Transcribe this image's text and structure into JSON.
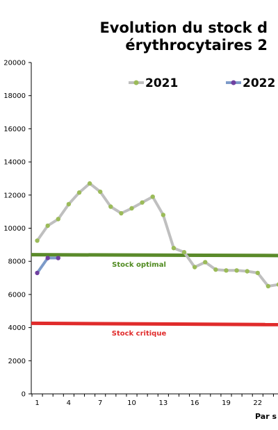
{
  "chart_data": {
    "type": "line",
    "title_lines": [
      "Evolution du stock d",
      "érythrocytaires 2"
    ],
    "xlabel": "Par s",
    "ylim": [
      0,
      20000
    ],
    "yticks": [
      0,
      2000,
      4000,
      6000,
      8000,
      10000,
      12000,
      14000,
      16000,
      18000,
      20000
    ],
    "xlim": [
      0.5,
      24
    ],
    "xticks": [
      1,
      4,
      7,
      10,
      13,
      16,
      19,
      22
    ],
    "legend_position": "top",
    "series": [
      {
        "name": "2021",
        "color": "#bfbfbf",
        "marker_color": "#9bbb59",
        "x": [
          1,
          2,
          3,
          4,
          5,
          6,
          7,
          8,
          9,
          10,
          11,
          12,
          13,
          14,
          15,
          16,
          17,
          18,
          19,
          20,
          21,
          22,
          23,
          24
        ],
        "values": [
          9250,
          10150,
          10550,
          11450,
          12150,
          12700,
          12200,
          11300,
          10900,
          11200,
          11550,
          11900,
          10800,
          8800,
          8550,
          7650,
          7950,
          7500,
          7450,
          7450,
          7400,
          7300,
          6500,
          6600
        ]
      },
      {
        "name": "2022",
        "color": "#7d9bc9",
        "marker_color": "#7040a0",
        "x": [
          1,
          2,
          3
        ],
        "values": [
          7300,
          8200,
          8200
        ]
      }
    ],
    "reference_lines": [
      {
        "label": "Stock optimal",
        "color": "#5a8a2a",
        "label_color": "#4f8a1f",
        "start": 8400,
        "end": 8350
      },
      {
        "label": "Stock critique",
        "color": "#e02b2b",
        "label_color": "#e02b2b",
        "start": 4260,
        "end": 4180
      }
    ]
  }
}
